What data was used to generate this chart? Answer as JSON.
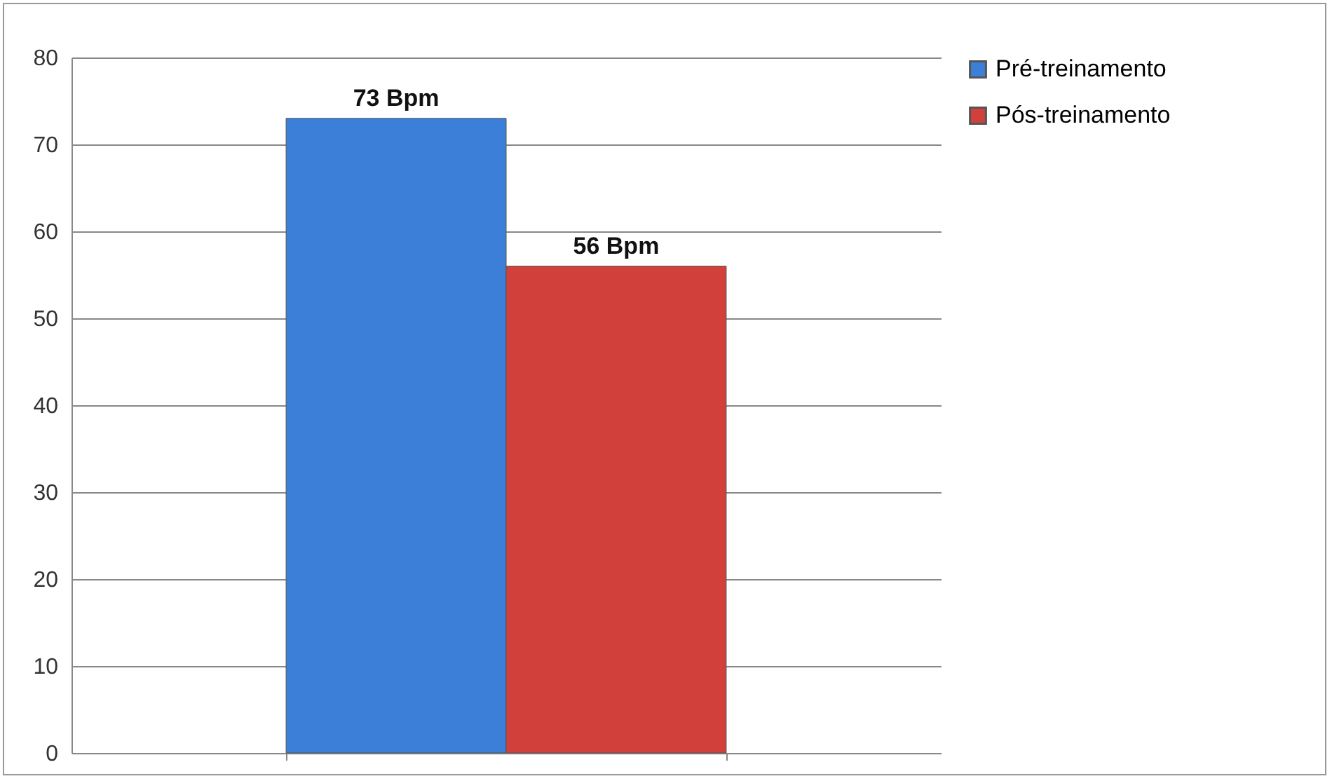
{
  "chart_data": {
    "type": "bar",
    "categories": [
      null
    ],
    "series": [
      {
        "name": "Pré-treinamento",
        "color": "#3b7fd8",
        "values": [
          73
        ],
        "value_labels": [
          "73 Bpm"
        ]
      },
      {
        "name": "Pós-treinamento",
        "color": "#d2403b",
        "values": [
          56
        ],
        "value_labels": [
          "56 Bpm"
        ]
      }
    ],
    "ylim": [
      0,
      80
    ],
    "yticks": [
      0,
      10,
      20,
      30,
      40,
      50,
      60,
      70,
      80
    ],
    "grid": "y",
    "legend": "right"
  }
}
